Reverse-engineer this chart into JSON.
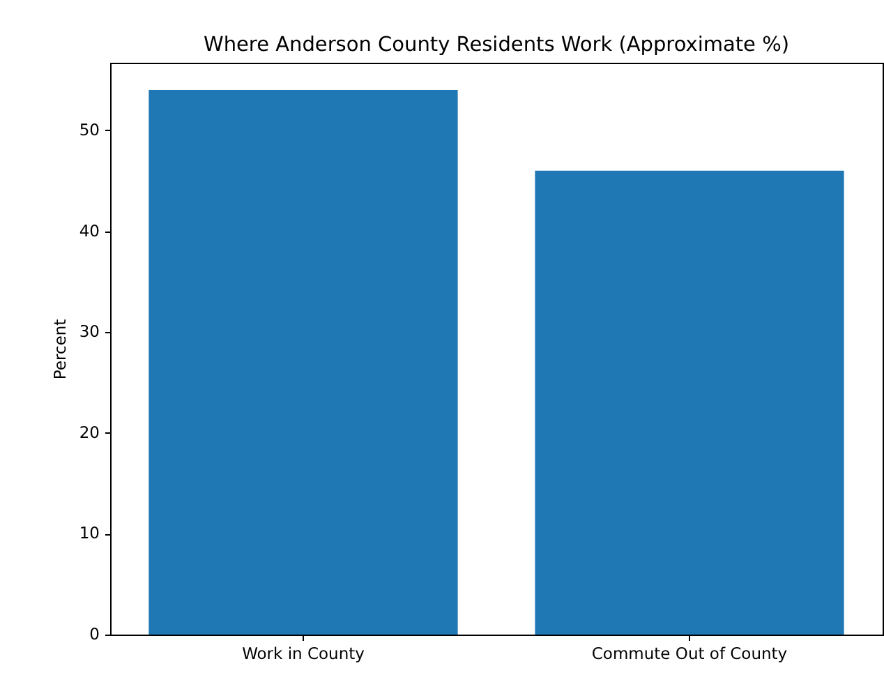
{
  "chart_data": {
    "type": "bar",
    "title": "Where Anderson County Residents Work (Approximate %)",
    "categories": [
      "Work in County",
      "Commute Out of County"
    ],
    "values": [
      54,
      46
    ],
    "color": "#1f77b4",
    "ylabel": "Percent",
    "ylim": [
      0,
      56.7
    ],
    "yticks": [
      0,
      10,
      20,
      30,
      40,
      50
    ],
    "grid": false
  }
}
